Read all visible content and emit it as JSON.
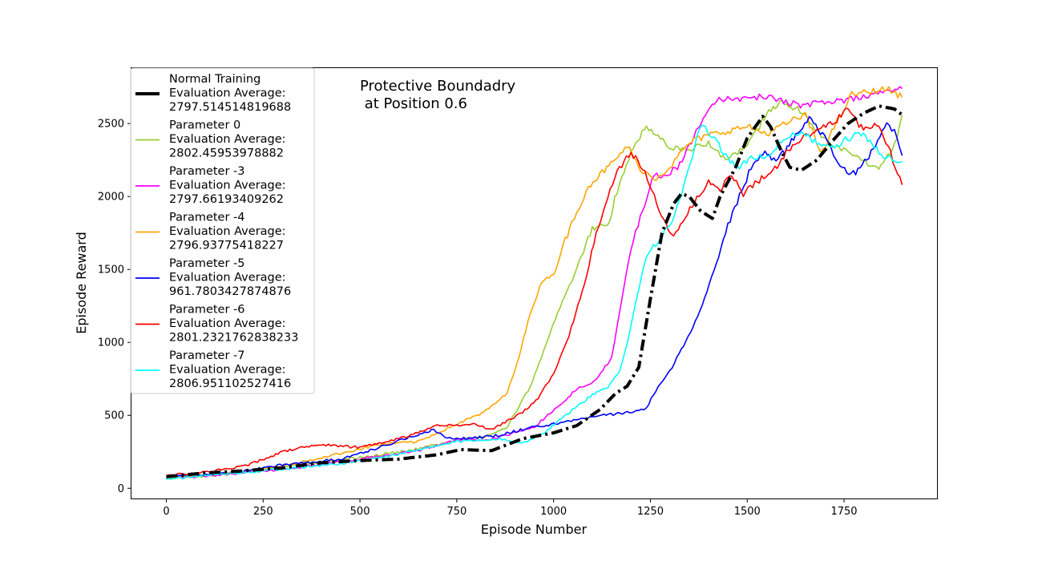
{
  "chart_data": {
    "type": "line",
    "title_lines": [
      "Protective Boundadry",
      " at Position 0.6"
    ],
    "xlabel": "Episode Number",
    "ylabel": "Episode Reward",
    "xlim": [
      -90,
      1990
    ],
    "ylim": [
      -70,
      2880
    ],
    "xticks": [
      0,
      250,
      500,
      750,
      1000,
      1250,
      1500,
      1750
    ],
    "yticks": [
      0,
      500,
      1000,
      1500,
      2000,
      2500
    ],
    "grid": false,
    "legend_position": "top-left",
    "series": [
      {
        "name": "Normal Training",
        "legend_lines": [
          "Normal Training",
          " Evaluation Average:",
          " 2797.514514819688"
        ],
        "color": "#000000",
        "style": "dashdot",
        "points": [
          [
            0,
            80
          ],
          [
            100,
            105
          ],
          [
            200,
            120
          ],
          [
            300,
            140
          ],
          [
            400,
            175
          ],
          [
            500,
            190
          ],
          [
            600,
            200
          ],
          [
            700,
            230
          ],
          [
            760,
            265
          ],
          [
            840,
            258
          ],
          [
            920,
            340
          ],
          [
            1000,
            380
          ],
          [
            1060,
            430
          ],
          [
            1120,
            540
          ],
          [
            1160,
            650
          ],
          [
            1190,
            700
          ],
          [
            1220,
            830
          ],
          [
            1250,
            1300
          ],
          [
            1280,
            1750
          ],
          [
            1310,
            1950
          ],
          [
            1330,
            2020
          ],
          [
            1350,
            2000
          ],
          [
            1380,
            1900
          ],
          [
            1410,
            1850
          ],
          [
            1430,
            2000
          ],
          [
            1470,
            2200
          ],
          [
            1500,
            2400
          ],
          [
            1540,
            2550
          ],
          [
            1560,
            2480
          ],
          [
            1590,
            2300
          ],
          [
            1610,
            2200
          ],
          [
            1640,
            2180
          ],
          [
            1680,
            2250
          ],
          [
            1720,
            2380
          ],
          [
            1760,
            2500
          ],
          [
            1800,
            2570
          ],
          [
            1840,
            2620
          ],
          [
            1880,
            2600
          ],
          [
            1900,
            2560
          ]
        ]
      },
      {
        "name": "Parameter 0",
        "legend_lines": [
          "Parameter 0",
          " Evaluation Average:",
          " 2802.45953978882"
        ],
        "color": "#9acd32",
        "style": "solid",
        "points": [
          [
            0,
            70
          ],
          [
            150,
            95
          ],
          [
            300,
            150
          ],
          [
            500,
            210
          ],
          [
            650,
            270
          ],
          [
            750,
            330
          ],
          [
            820,
            350
          ],
          [
            880,
            420
          ],
          [
            940,
            700
          ],
          [
            980,
            980
          ],
          [
            1010,
            1200
          ],
          [
            1060,
            1500
          ],
          [
            1100,
            1780
          ],
          [
            1140,
            1800
          ],
          [
            1170,
            2100
          ],
          [
            1200,
            2300
          ],
          [
            1240,
            2490
          ],
          [
            1270,
            2400
          ],
          [
            1310,
            2330
          ],
          [
            1350,
            2330
          ],
          [
            1400,
            2360
          ],
          [
            1450,
            2250
          ],
          [
            1500,
            2350
          ],
          [
            1550,
            2560
          ],
          [
            1590,
            2650
          ],
          [
            1630,
            2600
          ],
          [
            1680,
            2450
          ],
          [
            1720,
            2350
          ],
          [
            1760,
            2300
          ],
          [
            1800,
            2230
          ],
          [
            1840,
            2200
          ],
          [
            1880,
            2350
          ],
          [
            1900,
            2560
          ]
        ]
      },
      {
        "name": "Parameter -3",
        "legend_lines": [
          "Parameter -3",
          " Evaluation Average:",
          " 2797.66193409262"
        ],
        "color": "#ff00ff",
        "style": "solid",
        "points": [
          [
            0,
            65
          ],
          [
            150,
            95
          ],
          [
            300,
            130
          ],
          [
            500,
            200
          ],
          [
            650,
            260
          ],
          [
            750,
            330
          ],
          [
            850,
            340
          ],
          [
            950,
            420
          ],
          [
            1020,
            580
          ],
          [
            1060,
            680
          ],
          [
            1110,
            740
          ],
          [
            1150,
            900
          ],
          [
            1170,
            1200
          ],
          [
            1200,
            1650
          ],
          [
            1230,
            1900
          ],
          [
            1260,
            2150
          ],
          [
            1290,
            2150
          ],
          [
            1320,
            2200
          ],
          [
            1350,
            2350
          ],
          [
            1380,
            2500
          ],
          [
            1410,
            2650
          ],
          [
            1450,
            2680
          ],
          [
            1500,
            2670
          ],
          [
            1550,
            2690
          ],
          [
            1600,
            2650
          ],
          [
            1650,
            2620
          ],
          [
            1700,
            2650
          ],
          [
            1750,
            2660
          ],
          [
            1800,
            2690
          ],
          [
            1850,
            2710
          ],
          [
            1900,
            2740
          ]
        ]
      },
      {
        "name": "Parameter -4",
        "legend_lines": [
          "Parameter -4",
          " Evaluation Average:",
          " 2796.93775418227"
        ],
        "color": "#ffa500",
        "style": "solid",
        "points": [
          [
            0,
            70
          ],
          [
            150,
            100
          ],
          [
            300,
            150
          ],
          [
            450,
            240
          ],
          [
            550,
            300
          ],
          [
            650,
            320
          ],
          [
            750,
            440
          ],
          [
            820,
            520
          ],
          [
            880,
            650
          ],
          [
            910,
            900
          ],
          [
            940,
            1200
          ],
          [
            970,
            1420
          ],
          [
            1000,
            1470
          ],
          [
            1030,
            1700
          ],
          [
            1060,
            1900
          ],
          [
            1090,
            2070
          ],
          [
            1120,
            2150
          ],
          [
            1160,
            2250
          ],
          [
            1190,
            2350
          ],
          [
            1220,
            2200
          ],
          [
            1260,
            2120
          ],
          [
            1300,
            2200
          ],
          [
            1350,
            2370
          ],
          [
            1400,
            2420
          ],
          [
            1450,
            2450
          ],
          [
            1500,
            2480
          ],
          [
            1550,
            2430
          ],
          [
            1600,
            2500
          ],
          [
            1650,
            2560
          ],
          [
            1690,
            2300
          ],
          [
            1730,
            2500
          ],
          [
            1770,
            2700
          ],
          [
            1820,
            2720
          ],
          [
            1860,
            2740
          ],
          [
            1900,
            2680
          ]
        ]
      },
      {
        "name": "Parameter -5",
        "legend_lines": [
          "Parameter -5",
          " Evaluation Average:",
          " 961.7803427874876"
        ],
        "color": "#0000ff",
        "style": "solid",
        "points": [
          [
            0,
            80
          ],
          [
            150,
            100
          ],
          [
            300,
            160
          ],
          [
            450,
            200
          ],
          [
            550,
            280
          ],
          [
            650,
            370
          ],
          [
            690,
            400
          ],
          [
            720,
            350
          ],
          [
            780,
            340
          ],
          [
            850,
            360
          ],
          [
            950,
            420
          ],
          [
            1000,
            440
          ],
          [
            1040,
            460
          ],
          [
            1100,
            490
          ],
          [
            1160,
            510
          ],
          [
            1220,
            530
          ],
          [
            1240,
            550
          ],
          [
            1270,
            700
          ],
          [
            1300,
            800
          ],
          [
            1330,
            950
          ],
          [
            1360,
            1100
          ],
          [
            1390,
            1300
          ],
          [
            1420,
            1550
          ],
          [
            1450,
            1800
          ],
          [
            1480,
            2000
          ],
          [
            1510,
            2200
          ],
          [
            1540,
            2300
          ],
          [
            1580,
            2250
          ],
          [
            1620,
            2400
          ],
          [
            1660,
            2550
          ],
          [
            1700,
            2400
          ],
          [
            1740,
            2200
          ],
          [
            1780,
            2150
          ],
          [
            1820,
            2300
          ],
          [
            1860,
            2500
          ],
          [
            1880,
            2450
          ],
          [
            1900,
            2280
          ]
        ]
      },
      {
        "name": "Parameter -6",
        "legend_lines": [
          "Parameter -6",
          " Evaluation Average:",
          " 2801.2321762838233"
        ],
        "color": "#ff0000",
        "style": "solid",
        "points": [
          [
            0,
            90
          ],
          [
            100,
            110
          ],
          [
            200,
            150
          ],
          [
            300,
            250
          ],
          [
            350,
            280
          ],
          [
            400,
            300
          ],
          [
            450,
            290
          ],
          [
            500,
            280
          ],
          [
            550,
            310
          ],
          [
            600,
            340
          ],
          [
            650,
            380
          ],
          [
            700,
            430
          ],
          [
            750,
            430
          ],
          [
            800,
            440
          ],
          [
            840,
            400
          ],
          [
            880,
            460
          ],
          [
            920,
            520
          ],
          [
            960,
            620
          ],
          [
            1000,
            780
          ],
          [
            1040,
            1050
          ],
          [
            1080,
            1400
          ],
          [
            1110,
            1750
          ],
          [
            1140,
            2000
          ],
          [
            1170,
            2200
          ],
          [
            1200,
            2300
          ],
          [
            1230,
            2200
          ],
          [
            1260,
            2000
          ],
          [
            1290,
            1800
          ],
          [
            1310,
            1720
          ],
          [
            1340,
            1850
          ],
          [
            1370,
            2000
          ],
          [
            1400,
            2100
          ],
          [
            1430,
            2050
          ],
          [
            1460,
            2150
          ],
          [
            1490,
            2010
          ],
          [
            1520,
            2100
          ],
          [
            1560,
            2150
          ],
          [
            1600,
            2300
          ],
          [
            1640,
            2400
          ],
          [
            1680,
            2450
          ],
          [
            1720,
            2500
          ],
          [
            1760,
            2600
          ],
          [
            1800,
            2450
          ],
          [
            1840,
            2500
          ],
          [
            1870,
            2300
          ],
          [
            1900,
            2080
          ]
        ]
      },
      {
        "name": "Parameter -7",
        "legend_lines": [
          "Parameter -7",
          " Evaluation Average:",
          " 2806.951102527416"
        ],
        "color": "#00ffff",
        "style": "solid",
        "points": [
          [
            0,
            60
          ],
          [
            150,
            100
          ],
          [
            300,
            130
          ],
          [
            450,
            170
          ],
          [
            550,
            210
          ],
          [
            650,
            260
          ],
          [
            750,
            320
          ],
          [
            850,
            340
          ],
          [
            920,
            310
          ],
          [
            980,
            390
          ],
          [
            1020,
            480
          ],
          [
            1060,
            560
          ],
          [
            1100,
            640
          ],
          [
            1140,
            690
          ],
          [
            1170,
            800
          ],
          [
            1190,
            1000
          ],
          [
            1210,
            1250
          ],
          [
            1240,
            1600
          ],
          [
            1270,
            1700
          ],
          [
            1300,
            1800
          ],
          [
            1330,
            2000
          ],
          [
            1360,
            2300
          ],
          [
            1380,
            2480
          ],
          [
            1410,
            2420
          ],
          [
            1450,
            2260
          ],
          [
            1480,
            2200
          ],
          [
            1510,
            2260
          ],
          [
            1550,
            2280
          ],
          [
            1600,
            2400
          ],
          [
            1640,
            2450
          ],
          [
            1680,
            2360
          ],
          [
            1720,
            2330
          ],
          [
            1760,
            2400
          ],
          [
            1800,
            2430
          ],
          [
            1840,
            2300
          ],
          [
            1880,
            2250
          ],
          [
            1900,
            2240
          ]
        ]
      }
    ]
  }
}
